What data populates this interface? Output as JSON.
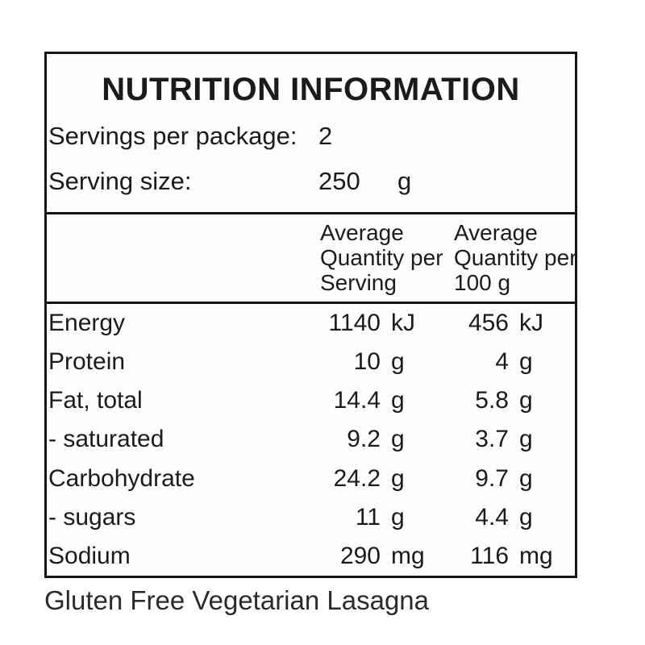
{
  "title": "NUTRITION INFORMATION",
  "serving_info": {
    "servings_label": "Servings per package:",
    "servings_value": "2",
    "size_label": "Serving size:",
    "size_value": "250",
    "size_unit": "g"
  },
  "column_headers": {
    "per_serving": [
      "Average",
      "Quantity per",
      "Serving"
    ],
    "per_100g": [
      "Average",
      "Quantity per",
      "100 g"
    ]
  },
  "rows": [
    {
      "nutrient": "Energy",
      "per_serving": "1140",
      "per_serving_unit": "kJ",
      "per_100g": "456",
      "per_100g_unit": "kJ"
    },
    {
      "nutrient": "Protein",
      "per_serving": "10",
      "per_serving_unit": "g",
      "per_100g": "4",
      "per_100g_unit": "g"
    },
    {
      "nutrient": "Fat, total",
      "per_serving": "14.4",
      "per_serving_unit": "g",
      "per_100g": "5.8",
      "per_100g_unit": "g"
    },
    {
      "nutrient": "- saturated",
      "per_serving": "9.2",
      "per_serving_unit": "g",
      "per_100g": "3.7",
      "per_100g_unit": "g"
    },
    {
      "nutrient": "Carbohydrate",
      "per_serving": "24.2",
      "per_serving_unit": "g",
      "per_100g": "9.7",
      "per_100g_unit": "g"
    },
    {
      "nutrient": "- sugars",
      "per_serving": "11",
      "per_serving_unit": "g",
      "per_100g": "4.4",
      "per_100g_unit": "g"
    },
    {
      "nutrient": "Sodium",
      "per_serving": "290",
      "per_serving_unit": "mg",
      "per_100g": "116",
      "per_100g_unit": "mg"
    }
  ],
  "caption": "Gluten Free Vegetarian Lasagna",
  "colors": {
    "text": "#1b1b1b",
    "border": "#161616",
    "background": "#ffffff"
  }
}
